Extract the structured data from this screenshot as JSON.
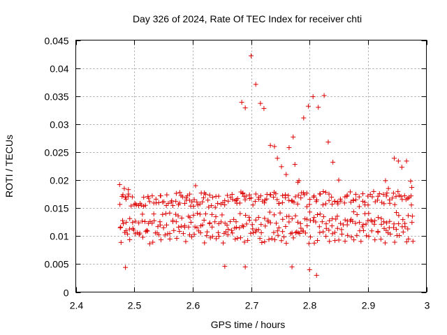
{
  "chart_data": {
    "type": "scatter",
    "title": "Day 326 of 2024, Rate Of TEC Index for receiver chti",
    "xlabel": "GPS time / hours",
    "ylabel": "ROTI / TECUs",
    "xlim": [
      2.4,
      3.0
    ],
    "ylim": [
      0,
      0.045
    ],
    "xticks": [
      2.4,
      2.5,
      2.6,
      2.7,
      2.8,
      2.9,
      3.0
    ],
    "xtick_labels": [
      "2.4",
      "2.5",
      "2.6",
      "2.7",
      "2.8",
      "2.9",
      "3"
    ],
    "yticks": [
      0,
      0.005,
      0.01,
      0.015,
      0.02,
      0.025,
      0.03,
      0.035,
      0.04,
      0.045
    ],
    "ytick_labels": [
      "0",
      "0.005",
      "0.01",
      "0.015",
      "0.02",
      "0.025",
      "0.03",
      "0.035",
      "0.04",
      "0.045"
    ],
    "grid": true,
    "marker": "+",
    "color": "#dd0000",
    "outliers": [
      [
        2.475,
        0.0192
      ],
      [
        2.483,
        0.0185
      ],
      [
        2.49,
        0.0183
      ],
      [
        2.485,
        0.0044
      ],
      [
        2.684,
        0.0339
      ],
      [
        2.69,
        0.0329
      ],
      [
        2.7,
        0.0422
      ],
      [
        2.708,
        0.0371
      ],
      [
        2.716,
        0.0337
      ],
      [
        2.722,
        0.0328
      ],
      [
        2.733,
        0.0262
      ],
      [
        2.74,
        0.026
      ],
      [
        2.745,
        0.0239
      ],
      [
        2.752,
        0.0224
      ],
      [
        2.76,
        0.021
      ],
      [
        2.765,
        0.0258
      ],
      [
        2.772,
        0.0277
      ],
      [
        2.775,
        0.0228
      ],
      [
        2.78,
        0.0196
      ],
      [
        2.782,
        0.0199
      ],
      [
        2.79,
        0.0311
      ],
      [
        2.798,
        0.0332
      ],
      [
        2.806,
        0.0349
      ],
      [
        2.815,
        0.033
      ],
      [
        2.825,
        0.0351
      ],
      [
        2.832,
        0.0268
      ],
      [
        2.84,
        0.0232
      ],
      [
        2.85,
        0.02
      ],
      [
        2.93,
        0.0199
      ],
      [
        2.935,
        0.0185
      ],
      [
        2.945,
        0.0239
      ],
      [
        2.952,
        0.0234
      ],
      [
        2.958,
        0.0223
      ],
      [
        2.966,
        0.0234
      ],
      [
        2.973,
        0.0198
      ],
      [
        2.975,
        0.0187
      ],
      [
        2.686,
        0.0177
      ],
      [
        2.677,
        0.0167
      ],
      [
        2.62,
        0.0177
      ],
      [
        2.605,
        0.019
      ],
      [
        2.595,
        0.0175
      ],
      [
        2.578,
        0.0178
      ],
      [
        2.589,
        0.0168
      ],
      [
        2.812,
        0.003
      ],
      [
        2.8,
        0.004
      ],
      [
        2.77,
        0.0045
      ],
      [
        2.69,
        0.0045
      ],
      [
        2.655,
        0.0046
      ]
    ],
    "bands": [
      {
        "x0": 2.475,
        "x1": 2.975,
        "y": [
          0.0132,
          0.0033,
          0.0123,
          0.0101
        ]
      },
      {
        "x0": 2.476,
        "x1": 2.975,
        "y": [
          0.0114,
          0.0018,
          0.0106,
          0.008
        ]
      },
      {
        "x0": 2.477,
        "x1": 2.974,
        "y": [
          0.0094,
          0.0025,
          0.0092,
          0.0095
        ]
      },
      {
        "x0": 2.478,
        "x1": 2.976,
        "y": [
          0.0075,
          0.0024,
          0.008,
          0.0126
        ]
      },
      {
        "x0": 2.479,
        "x1": 2.973,
        "y": [
          0.0148,
          0.002,
          0.014,
          0.0093
        ]
      }
    ],
    "points_per_band": 96
  }
}
